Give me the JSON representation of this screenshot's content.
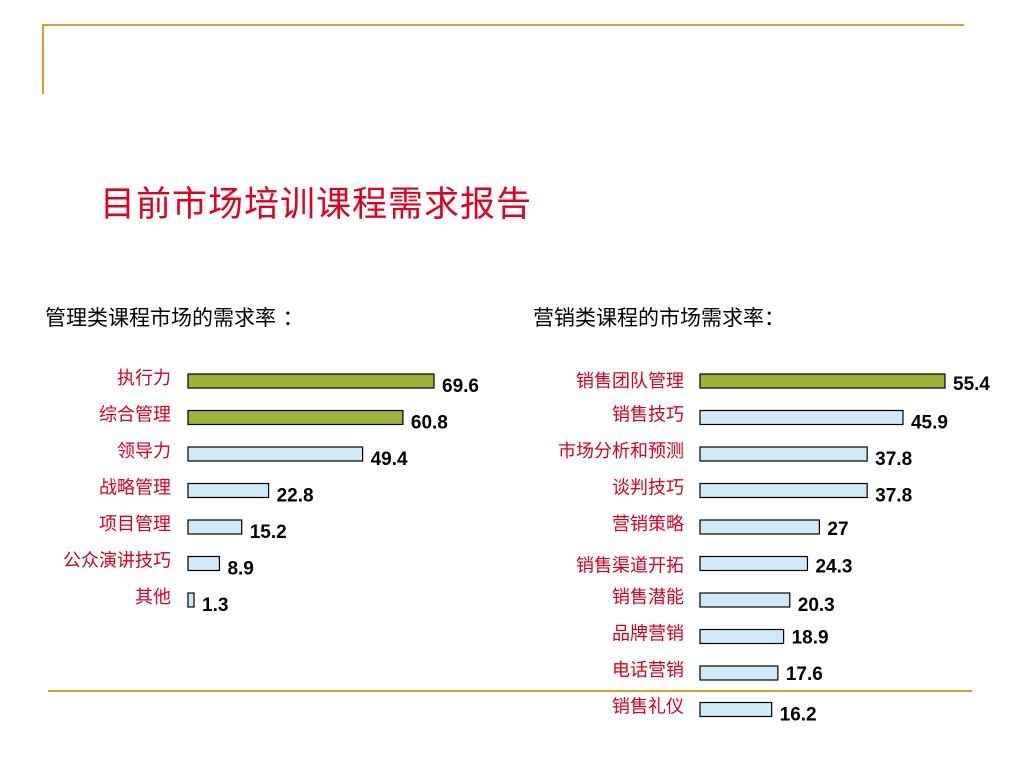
{
  "page": {
    "title": "目前市场培训课程需求报告",
    "subtitle_left": "管理类课程市场的需求率 ：",
    "subtitle_right": "营销类课程的市场需求率："
  },
  "colors": {
    "accent_line": "#d6a12a",
    "title": "#e1001d",
    "category_label": "#d8001f",
    "bar_highlight": "#9cb43a",
    "bar_normal": "#cfe9f8",
    "bar_stroke": "#000000"
  },
  "chart_data": [
    {
      "type": "bar",
      "orientation": "horizontal",
      "title": "管理类课程市场的需求率 ：",
      "categories": [
        "执行力",
        "综合管理",
        "领导力",
        "战略管理",
        "项目管理",
        "公众演讲技巧",
        "其他"
      ],
      "values": [
        69.6,
        60.8,
        49.4,
        22.8,
        15.2,
        8.9,
        1.3
      ],
      "value_labels": [
        "69.6",
        "60.8",
        "49.4",
        "22.8",
        "15.2",
        "8.9",
        "1.3"
      ],
      "highlighted": [
        true,
        true,
        false,
        false,
        false,
        false,
        false
      ],
      "xlim": [
        0,
        69.6
      ],
      "grid": false
    },
    {
      "type": "bar",
      "orientation": "horizontal",
      "title": "营销类课程的市场需求率：",
      "categories": [
        "销售团队管理",
        "销售技巧",
        "市场分析和预测",
        "谈判技巧",
        "营销策略",
        "销售渠道开拓",
        "销售潜能",
        "品牌营销",
        "电话营销",
        "销售礼仪"
      ],
      "values": [
        55.4,
        45.9,
        37.8,
        37.8,
        27,
        24.3,
        20.3,
        18.9,
        17.6,
        16.2
      ],
      "value_labels": [
        "55.4",
        "45.9",
        "37.8",
        "37.8",
        "27",
        "24.3",
        "20.3",
        "18.9",
        "17.6",
        "16.2"
      ],
      "highlighted": [
        true,
        false,
        false,
        false,
        false,
        false,
        false,
        false,
        false,
        false
      ],
      "xlim": [
        0,
        55.4
      ],
      "grid": false
    }
  ]
}
